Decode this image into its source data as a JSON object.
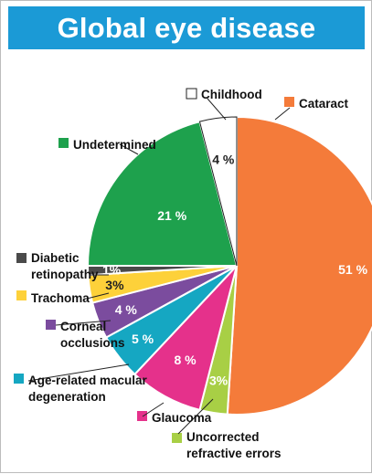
{
  "title": "Global eye disease",
  "colors": {
    "title_bar": "#1b9ad6",
    "slice_border": "#ffffff"
  },
  "chart_data": {
    "type": "pie",
    "title": "Global eye disease",
    "unit": "%",
    "legend_placement": "around pie with leader lines",
    "slices": [
      {
        "id": "cataract",
        "lines": [
          "Cataract"
        ],
        "value": 51,
        "value_label": "51 %",
        "color": "#f47b3a",
        "label_color": "#ffffff"
      },
      {
        "id": "uncorrected",
        "lines": [
          "Uncorrected",
          "refractive errors"
        ],
        "value": 3,
        "value_label": "3%",
        "color": "#a8cf45",
        "label_color": "#ffffff"
      },
      {
        "id": "glaucoma",
        "lines": [
          "Glaucoma"
        ],
        "value": 8,
        "value_label": "8 %",
        "color": "#e5318b",
        "label_color": "#ffffff"
      },
      {
        "id": "amd",
        "lines": [
          "Age-related macular",
          "degeneration"
        ],
        "value": 5,
        "value_label": "5 %",
        "color": "#15a7c2",
        "label_color": "#ffffff"
      },
      {
        "id": "corneal",
        "lines": [
          "Corneal",
          "occlusions"
        ],
        "value": 4,
        "value_label": "4 %",
        "color": "#7b4c9e",
        "label_color": "#ffffff"
      },
      {
        "id": "trachoma",
        "lines": [
          "Trachoma"
        ],
        "value": 3,
        "value_label": "3%",
        "color": "#fdd13a",
        "label_color": "#222222"
      },
      {
        "id": "diabetic",
        "lines": [
          "Diabetic",
          "retinopathy"
        ],
        "value": 1,
        "value_label": "1%",
        "color": "#4a4a4a",
        "label_color": "#ffffff"
      },
      {
        "id": "undetermined",
        "lines": [
          "Undetermined"
        ],
        "value": 21,
        "value_label": "21 %",
        "color": "#1ea14d",
        "label_color": "#ffffff"
      },
      {
        "id": "childhood",
        "lines": [
          "Childhood"
        ],
        "value": 4,
        "value_label": "4 %",
        "color": "#ffffff",
        "label_color": "#222222"
      }
    ]
  }
}
